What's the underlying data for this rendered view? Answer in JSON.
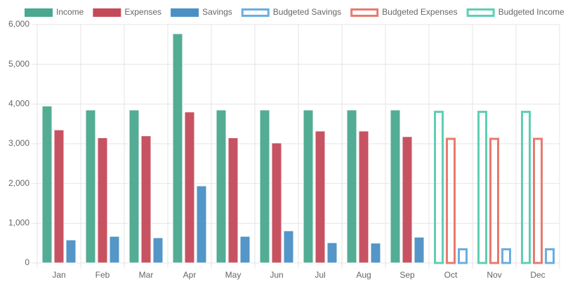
{
  "chart_data": {
    "type": "bar",
    "categories": [
      "Jan",
      "Feb",
      "Mar",
      "Apr",
      "May",
      "Jun",
      "Jul",
      "Aug",
      "Sep",
      "Oct",
      "Nov",
      "Dec"
    ],
    "series": [
      {
        "name": "Income",
        "color": "#4aa88e",
        "values": [
          3950,
          3850,
          3850,
          5770,
          3850,
          3850,
          3850,
          3850,
          3850,
          null,
          null,
          null
        ]
      },
      {
        "name": "Expenses",
        "color": "#c44a5a",
        "values": [
          3350,
          3150,
          3200,
          3800,
          3150,
          3020,
          3320,
          3320,
          3180,
          null,
          null,
          null
        ]
      },
      {
        "name": "Savings",
        "color": "#4a90c4",
        "values": [
          580,
          670,
          635,
          1940,
          670,
          810,
          510,
          500,
          650,
          null,
          null,
          null
        ]
      },
      {
        "name": "Budgeted Savings",
        "color": "#6aaee0",
        "values": [
          null,
          null,
          null,
          null,
          null,
          null,
          null,
          null,
          null,
          370,
          370,
          370
        ]
      },
      {
        "name": "Budgeted Expenses",
        "color": "#e87a6e",
        "values": [
          null,
          null,
          null,
          null,
          null,
          null,
          null,
          null,
          null,
          3150,
          3150,
          3150
        ]
      },
      {
        "name": "Budgeted Income",
        "color": "#5ecfb3",
        "values": [
          null,
          null,
          null,
          null,
          null,
          null,
          null,
          null,
          null,
          3830,
          3830,
          3830
        ]
      }
    ],
    "ylim": [
      0,
      6000
    ],
    "yticks": [
      0,
      {
        "value": 1000,
        "label": "1,000"
      },
      {
        "value": 2000,
        "label": "2,000"
      },
      {
        "value": 3000,
        "label": "3,000"
      },
      {
        "value": 4000,
        "label": "4,000"
      },
      {
        "value": 5000,
        "label": "5,000"
      },
      {
        "value": 6000,
        "label": "6,000"
      }
    ],
    "grid": true
  }
}
